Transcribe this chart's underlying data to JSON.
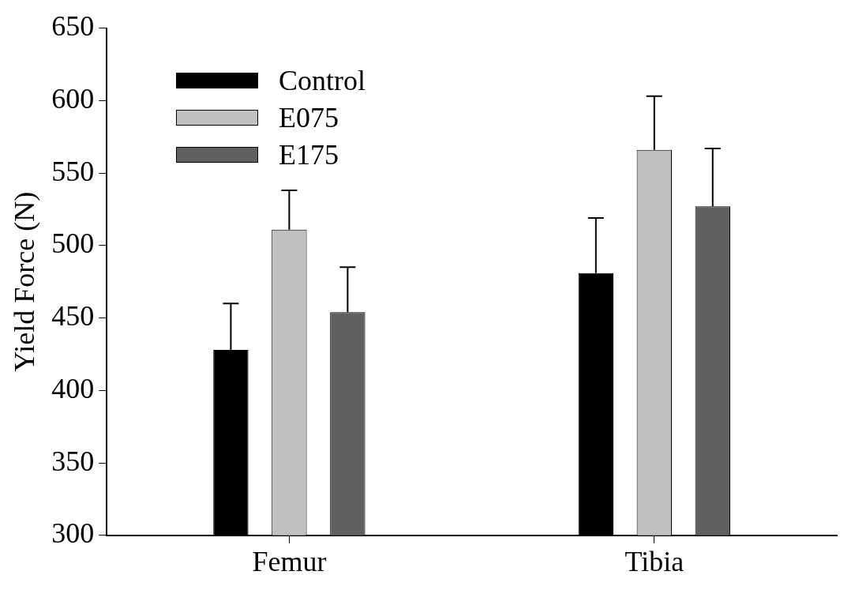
{
  "chart_data": {
    "type": "bar",
    "ylabel": "Yield Force (N)",
    "categories": [
      "Femur",
      "Tibia"
    ],
    "series": [
      {
        "name": "Control",
        "color": "#000000",
        "values": [
          428,
          481
        ],
        "errors": [
          32,
          38
        ]
      },
      {
        "name": "E075",
        "color": "#c0c0c0",
        "values": [
          511,
          566
        ],
        "errors": [
          27,
          37
        ]
      },
      {
        "name": "E175",
        "color": "#606060",
        "values": [
          454,
          527
        ],
        "errors": [
          31,
          40
        ]
      }
    ],
    "ylim": [
      300,
      650
    ],
    "yticks": [
      300,
      350,
      400,
      450,
      500,
      550,
      600,
      650
    ],
    "grid": false,
    "legend": "top left"
  }
}
